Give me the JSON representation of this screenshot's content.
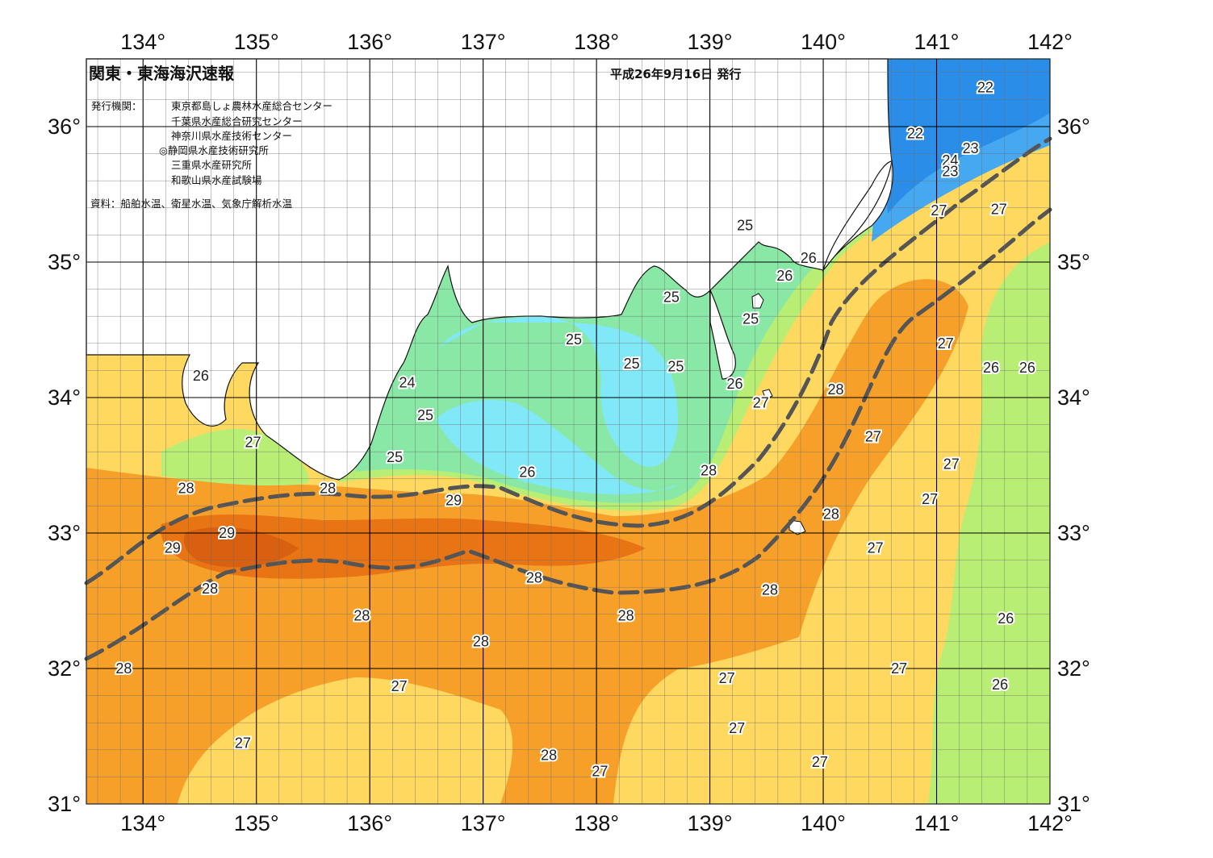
{
  "title": "関東・東海海沢速報",
  "issue_date": "平成26年9月16日 発行",
  "issuers_label": "発行機関：",
  "issuers": [
    "東京都島しょ農林水産総合センター",
    "千葉県水産総合研究センター",
    "神奈川県水産技術センター",
    "◎静岡県水産技術研究所",
    "三重県水産研究所",
    "和歌山県水産試験場"
  ],
  "source": "資料：船舶水温、衛星水温、気象庁解析水温",
  "lon_ticks": [
    "134°",
    "135°",
    "136°",
    "137°",
    "138°",
    "139°",
    "140°",
    "141°",
    "142°"
  ],
  "lat_ticks": [
    "36°",
    "35°",
    "34°",
    "33°",
    "32°",
    "31°"
  ],
  "colors": {
    "t22": "#2a8ee8",
    "t23": "#46a8f0",
    "t24": "#80e8f6",
    "t25": "#8ae8a6",
    "t26": "#b8ee74",
    "t27": "#ffd860",
    "t28": "#f6a02a",
    "t29": "#e87414",
    "land": "#ffffff",
    "kuroshio": "#555555"
  },
  "contour_labels": [
    {
      "text": "22",
      "lon": 140.81,
      "lat": 35.95
    },
    {
      "text": "22",
      "lon": 141.43,
      "lat": 36.29
    },
    {
      "text": "23",
      "lon": 141.3,
      "lat": 35.84
    },
    {
      "text": "24",
      "lon": 141.12,
      "lat": 35.75
    },
    {
      "text": "23",
      "lon": 141.12,
      "lat": 35.67
    },
    {
      "text": "27",
      "lon": 141.02,
      "lat": 35.38
    },
    {
      "text": "27",
      "lon": 141.55,
      "lat": 35.39
    },
    {
      "text": "25",
      "lon": 139.31,
      "lat": 35.27
    },
    {
      "text": "26",
      "lon": 139.87,
      "lat": 35.03
    },
    {
      "text": "26",
      "lon": 139.66,
      "lat": 34.9
    },
    {
      "text": "25",
      "lon": 138.66,
      "lat": 34.74
    },
    {
      "text": "25",
      "lon": 139.36,
      "lat": 34.58
    },
    {
      "text": "25",
      "lon": 137.8,
      "lat": 34.43
    },
    {
      "text": "25",
      "lon": 138.31,
      "lat": 34.25
    },
    {
      "text": "25",
      "lon": 138.7,
      "lat": 34.23
    },
    {
      "text": "26",
      "lon": 139.22,
      "lat": 34.1
    },
    {
      "text": "27",
      "lon": 139.45,
      "lat": 33.96
    },
    {
      "text": "28",
      "lon": 140.11,
      "lat": 34.06
    },
    {
      "text": "27",
      "lon": 141.08,
      "lat": 34.4
    },
    {
      "text": "26",
      "lon": 141.48,
      "lat": 34.22
    },
    {
      "text": "26",
      "lon": 141.8,
      "lat": 34.22
    },
    {
      "text": "26",
      "lon": 134.51,
      "lat": 34.16
    },
    {
      "text": "24",
      "lon": 136.33,
      "lat": 34.11
    },
    {
      "text": "25",
      "lon": 136.49,
      "lat": 33.87
    },
    {
      "text": "27",
      "lon": 140.44,
      "lat": 33.71
    },
    {
      "text": "27",
      "lon": 134.97,
      "lat": 33.67
    },
    {
      "text": "27",
      "lon": 141.13,
      "lat": 33.51
    },
    {
      "text": "25",
      "lon": 136.22,
      "lat": 33.56
    },
    {
      "text": "26",
      "lon": 137.39,
      "lat": 33.45
    },
    {
      "text": "28",
      "lon": 138.99,
      "lat": 33.46
    },
    {
      "text": "28",
      "lon": 134.38,
      "lat": 33.33
    },
    {
      "text": "28",
      "lon": 135.63,
      "lat": 33.33
    },
    {
      "text": "27",
      "lon": 140.94,
      "lat": 33.25
    },
    {
      "text": "29",
      "lon": 136.74,
      "lat": 33.24
    },
    {
      "text": "28",
      "lon": 140.07,
      "lat": 33.14
    },
    {
      "text": "29",
      "lon": 134.74,
      "lat": 33.0
    },
    {
      "text": "29",
      "lon": 134.26,
      "lat": 32.89
    },
    {
      "text": "27",
      "lon": 140.46,
      "lat": 32.89
    },
    {
      "text": "28",
      "lon": 137.45,
      "lat": 32.67
    },
    {
      "text": "28",
      "lon": 139.53,
      "lat": 32.58
    },
    {
      "text": "28",
      "lon": 134.59,
      "lat": 32.59
    },
    {
      "text": "28",
      "lon": 135.93,
      "lat": 32.39
    },
    {
      "text": "28",
      "lon": 138.26,
      "lat": 32.39
    },
    {
      "text": "26",
      "lon": 141.61,
      "lat": 32.37
    },
    {
      "text": "28",
      "lon": 136.98,
      "lat": 32.2
    },
    {
      "text": "27",
      "lon": 140.67,
      "lat": 32.0
    },
    {
      "text": "27",
      "lon": 139.15,
      "lat": 31.93
    },
    {
      "text": "28",
      "lon": 133.83,
      "lat": 32.0
    },
    {
      "text": "26",
      "lon": 141.56,
      "lat": 31.88
    },
    {
      "text": "27",
      "lon": 136.26,
      "lat": 31.87
    },
    {
      "text": "27",
      "lon": 139.24,
      "lat": 31.56
    },
    {
      "text": "27",
      "lon": 134.88,
      "lat": 31.45
    },
    {
      "text": "28",
      "lon": 137.58,
      "lat": 31.36
    },
    {
      "text": "27",
      "lon": 139.97,
      "lat": 31.31
    },
    {
      "text": "27",
      "lon": 138.03,
      "lat": 31.24
    }
  ]
}
